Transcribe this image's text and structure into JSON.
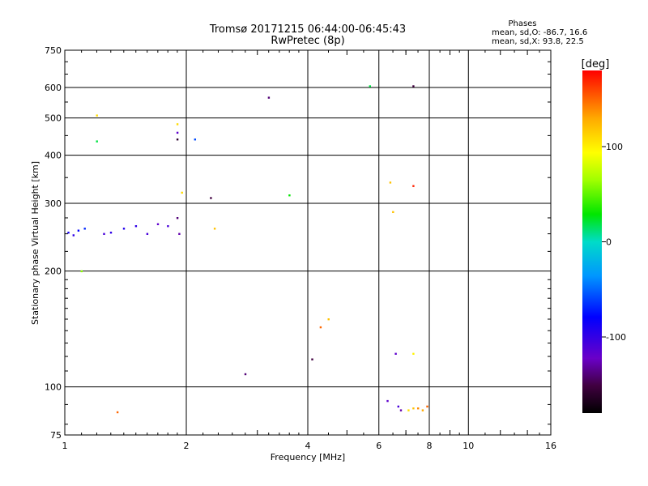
{
  "chart_data": {
    "type": "scatter",
    "title": "Tromsø 20171215 06:44:00-06:45:43",
    "subtitle": "RwPretec (8p)",
    "xlabel": "Frequency [MHz]",
    "ylabel": "Stationary phase Virtual Height [km]",
    "x_scale": "log",
    "y_scale": "log",
    "xlim": [
      1,
      16
    ],
    "ylim": [
      75,
      750
    ],
    "x_ticks": [
      "1",
      "2",
      "4",
      "6",
      "8",
      "10",
      "16"
    ],
    "y_ticks": [
      "75",
      "100",
      "200",
      "300",
      "400",
      "500",
      "600",
      "750"
    ],
    "grid": true,
    "legend": {
      "header": "Phases",
      "line_o": "mean, sd,O: -86.7, 16.6",
      "line_x": "mean, sd,X:  93.8, 22.5"
    },
    "colorbar": {
      "label": "[deg]",
      "range": [
        -180,
        180
      ],
      "ticks": [
        "100",
        "0",
        "-100"
      ],
      "tick_values": [
        100,
        0,
        -100
      ]
    },
    "series": [
      {
        "points": [
          [
            1.02,
            252,
            -90
          ],
          [
            1.05,
            248,
            -100
          ],
          [
            1.08,
            255,
            -80
          ],
          [
            1.12,
            258,
            -70
          ],
          [
            1.25,
            250,
            -110
          ],
          [
            1.3,
            252,
            -100
          ],
          [
            1.4,
            258,
            -95
          ],
          [
            1.5,
            262,
            -100
          ],
          [
            1.6,
            250,
            -110
          ],
          [
            1.7,
            265,
            -120
          ],
          [
            1.8,
            262,
            -110
          ],
          [
            1.9,
            275,
            -140
          ],
          [
            1.92,
            250,
            -130
          ],
          [
            1.2,
            508,
            110
          ],
          [
            1.2,
            435,
            20
          ],
          [
            1.9,
            482,
            110
          ],
          [
            1.9,
            458,
            -120
          ],
          [
            1.9,
            440,
            -160
          ],
          [
            2.1,
            440,
            -60
          ],
          [
            2.3,
            310,
            -150
          ],
          [
            1.95,
            320,
            110
          ],
          [
            2.35,
            258,
            120
          ],
          [
            3.2,
            565,
            -140
          ],
          [
            3.6,
            315,
            30
          ],
          [
            5.7,
            605,
            20
          ],
          [
            7.3,
            605,
            -150
          ],
          [
            6.4,
            340,
            120
          ],
          [
            7.3,
            333,
            170
          ],
          [
            6.5,
            285,
            120
          ],
          [
            1.1,
            200,
            60
          ],
          [
            1.35,
            86,
            150
          ],
          [
            2.8,
            108,
            -140
          ],
          [
            4.1,
            118,
            -150
          ],
          [
            6.6,
            122,
            -120
          ],
          [
            7.3,
            122,
            100
          ],
          [
            6.3,
            92,
            -120
          ],
          [
            6.7,
            89,
            -110
          ],
          [
            6.8,
            87,
            -130
          ],
          [
            7.1,
            87,
            110
          ],
          [
            7.3,
            88,
            120
          ],
          [
            7.5,
            88,
            140
          ],
          [
            7.7,
            87,
            130
          ],
          [
            7.9,
            89,
            150
          ],
          [
            4.3,
            143,
            150
          ],
          [
            4.5,
            150,
            120
          ]
        ]
      }
    ]
  }
}
